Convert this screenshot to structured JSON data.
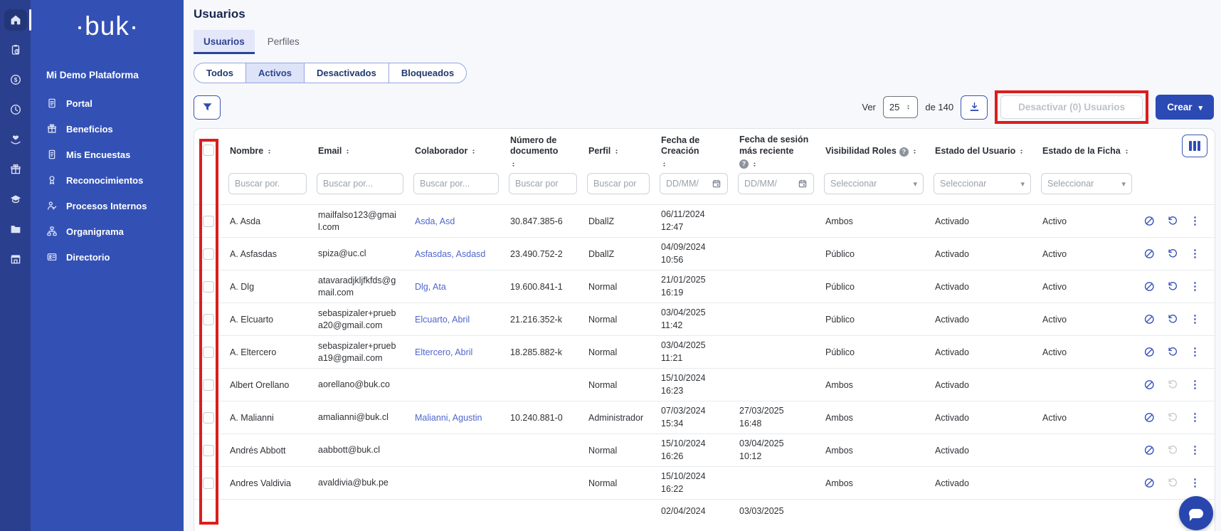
{
  "sidebar": {
    "logo": "·buk·",
    "company": "Mi Demo Plataforma",
    "rail_icons": [
      "home",
      "clipboard",
      "coin",
      "clock",
      "handheart",
      "gift",
      "edu",
      "folder",
      "store"
    ],
    "rail_active_index": 0,
    "items": [
      {
        "icon": "doc",
        "label": "Portal"
      },
      {
        "icon": "gift",
        "label": "Beneficios"
      },
      {
        "icon": "survey",
        "label": "Mis Encuestas"
      },
      {
        "icon": "medal",
        "label": "Reconocimientos"
      },
      {
        "icon": "people",
        "label": "Procesos Internos"
      },
      {
        "icon": "orgchart",
        "label": "Organigrama"
      },
      {
        "icon": "idcard",
        "label": "Directorio"
      }
    ]
  },
  "header": {
    "title": "Usuarios"
  },
  "tabs": [
    {
      "label": "Usuarios",
      "active": true
    },
    {
      "label": "Perfiles",
      "active": false
    }
  ],
  "status_filters": [
    {
      "label": "Todos",
      "active": false
    },
    {
      "label": "Activos",
      "active": true
    },
    {
      "label": "Desactivados",
      "active": false
    },
    {
      "label": "Bloqueados",
      "active": false
    }
  ],
  "toolbar": {
    "ver_label": "Ver",
    "page_size": "25",
    "total_label": "de 140",
    "deactivate_label": "Desactivar (0) Usuarios",
    "create_label": "Crear"
  },
  "table": {
    "columns": [
      {
        "label": "Nombre",
        "help": false
      },
      {
        "label": "Email",
        "help": false
      },
      {
        "label": "Colaborador",
        "help": false
      },
      {
        "label": "Número de documento",
        "help": false
      },
      {
        "label": "Perfil",
        "help": false
      },
      {
        "label": "Fecha de Creación",
        "help": false
      },
      {
        "label": "Fecha de sesión más reciente",
        "help": true
      },
      {
        "label": "Visibilidad Roles",
        "help": true
      },
      {
        "label": "Estado del Usuario",
        "help": false
      },
      {
        "label": "Estado de la Ficha",
        "help": false
      }
    ],
    "filters": [
      {
        "type": "search",
        "placeholder": "Buscar por."
      },
      {
        "type": "search",
        "placeholder": "Buscar por..."
      },
      {
        "type": "search",
        "placeholder": "Buscar por..."
      },
      {
        "type": "search",
        "placeholder": "Buscar por"
      },
      {
        "type": "search",
        "placeholder": "Buscar por"
      },
      {
        "type": "date",
        "placeholder": "DD/MM/"
      },
      {
        "type": "date",
        "placeholder": "DD/MM/"
      },
      {
        "type": "select",
        "placeholder": "Seleccionar"
      },
      {
        "type": "select",
        "placeholder": "Seleccionar"
      },
      {
        "type": "select",
        "placeholder": "Seleccionar"
      }
    ],
    "rows": [
      {
        "name": "A. Asda",
        "email": "mailfalso123@gmail.com",
        "colaborador": "Asda, Asd",
        "document": "30.847.385-6",
        "profile": "DballZ",
        "created_date": "06/11/2024",
        "created_time": "12:47",
        "session_date": "",
        "session_time": "",
        "visibility": "Ambos",
        "user_status": "Activado",
        "record_status": "Activo",
        "reset_enabled": true
      },
      {
        "name": "A. Asfasdas",
        "email": "spiza@uc.cl",
        "colaborador": "Asfasdas, Asdasd",
        "document": "23.490.752-2",
        "profile": "DballZ",
        "created_date": "04/09/2024",
        "created_time": "10:56",
        "session_date": "",
        "session_time": "",
        "visibility": "Público",
        "user_status": "Activado",
        "record_status": "Activo",
        "reset_enabled": true
      },
      {
        "name": "A. Dlg",
        "email": "atavaradjkljfkfds@gmail.com",
        "colaborador": "Dlg, Ata",
        "document": "19.600.841-1",
        "profile": "Normal",
        "created_date": "21/01/2025",
        "created_time": "16:19",
        "session_date": "",
        "session_time": "",
        "visibility": "Público",
        "user_status": "Activado",
        "record_status": "Activo",
        "reset_enabled": true
      },
      {
        "name": "A. Elcuarto",
        "email": "sebaspizaler+prueba20@gmail.com",
        "colaborador": "Elcuarto, Abril",
        "document": "21.216.352-k",
        "profile": "Normal",
        "created_date": "03/04/2025",
        "created_time": "11:42",
        "session_date": "",
        "session_time": "",
        "visibility": "Público",
        "user_status": "Activado",
        "record_status": "Activo",
        "reset_enabled": true
      },
      {
        "name": "A. Eltercero",
        "email": "sebaspizaler+prueba19@gmail.com",
        "colaborador": "Eltercero, Abril",
        "document": "18.285.882-k",
        "profile": "Normal",
        "created_date": "03/04/2025",
        "created_time": "11:21",
        "session_date": "",
        "session_time": "",
        "visibility": "Público",
        "user_status": "Activado",
        "record_status": "Activo",
        "reset_enabled": true
      },
      {
        "name": "Albert Orellano",
        "email": "aorellano@buk.co",
        "colaborador": "",
        "document": "",
        "profile": "Normal",
        "created_date": "15/10/2024",
        "created_time": "16:23",
        "session_date": "",
        "session_time": "",
        "visibility": "Ambos",
        "user_status": "Activado",
        "record_status": "",
        "reset_enabled": false
      },
      {
        "name": "A. Malianni",
        "email": "amalianni@buk.cl",
        "colaborador": "Malianni, Agustin",
        "document": "10.240.881-0",
        "profile": "Administrador",
        "created_date": "07/03/2024",
        "created_time": "15:34",
        "session_date": "27/03/2025",
        "session_time": "16:48",
        "visibility": "Ambos",
        "user_status": "Activado",
        "record_status": "Activo",
        "reset_enabled": false
      },
      {
        "name": "Andrés Abbott",
        "email": "aabbott@buk.cl",
        "colaborador": "",
        "document": "",
        "profile": "Normal",
        "created_date": "15/10/2024",
        "created_time": "16:26",
        "session_date": "03/04/2025",
        "session_time": "10:12",
        "visibility": "Ambos",
        "user_status": "Activado",
        "record_status": "",
        "reset_enabled": false
      },
      {
        "name": "Andres Valdivia",
        "email": "avaldivia@buk.pe",
        "colaborador": "",
        "document": "",
        "profile": "Normal",
        "created_date": "15/10/2024",
        "created_time": "16:22",
        "session_date": "",
        "session_time": "",
        "visibility": "Ambos",
        "user_status": "Activado",
        "record_status": "",
        "reset_enabled": false
      }
    ],
    "partial_row": {
      "created_date": "02/04/2024",
      "session_date": "03/03/2025"
    }
  },
  "colors": {
    "rail_bg": "#2b3f8f",
    "sidebar_bg": "#3351b5",
    "primary_button": "#2b4ab3",
    "accent_blue": "#2f4db3",
    "link": "#5066cb",
    "tab_active_bg": "#e3e7f9",
    "annotation_red": "#dc1d1d"
  }
}
